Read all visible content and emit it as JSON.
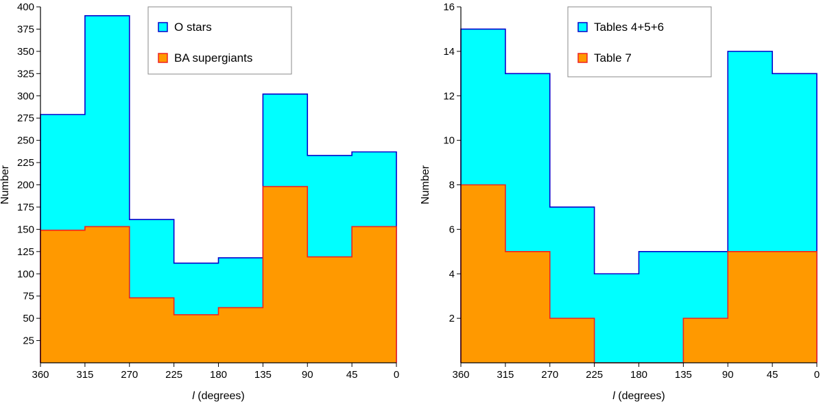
{
  "chart_data": [
    {
      "type": "histogram",
      "xlabel_var": "l",
      "xlabel_rest": " (degrees)",
      "ylabel": "Number",
      "xlim": [
        360,
        0
      ],
      "ylim": [
        0,
        400
      ],
      "x_ticks": [
        360,
        315,
        270,
        225,
        180,
        135,
        90,
        45,
        0
      ],
      "y_ticks": [
        25,
        50,
        75,
        100,
        125,
        150,
        175,
        200,
        225,
        250,
        275,
        300,
        325,
        350,
        375,
        400
      ],
      "legend_position": "top-center",
      "series": [
        {
          "name": "O stars",
          "fill": "#00ffff",
          "stroke": "#0000cc",
          "points": [
            [
              360,
              279
            ],
            [
              315,
              279
            ],
            [
              315,
              390
            ],
            [
              270,
              390
            ],
            [
              270,
              161
            ],
            [
              225,
              161
            ],
            [
              225,
              112
            ],
            [
              180,
              112
            ],
            [
              180,
              118
            ],
            [
              135,
              118
            ],
            [
              135,
              302
            ],
            [
              90,
              302
            ],
            [
              90,
              233
            ],
            [
              45,
              233
            ],
            [
              45,
              237
            ],
            [
              0,
              237
            ]
          ]
        },
        {
          "name": "BA supergiants",
          "fill": "#ff9900",
          "stroke": "#ee2222",
          "points": [
            [
              360,
              149
            ],
            [
              315,
              149
            ],
            [
              315,
              153
            ],
            [
              270,
              153
            ],
            [
              270,
              73
            ],
            [
              225,
              73
            ],
            [
              225,
              54
            ],
            [
              180,
              54
            ],
            [
              180,
              62
            ],
            [
              135,
              62
            ],
            [
              135,
              198
            ],
            [
              90,
              198
            ],
            [
              90,
              119
            ],
            [
              45,
              119
            ],
            [
              45,
              153
            ],
            [
              0,
              153
            ]
          ]
        }
      ]
    },
    {
      "type": "histogram",
      "xlabel_var": "l",
      "xlabel_rest": " (degrees)",
      "ylabel": "Number",
      "xlim": [
        360,
        0
      ],
      "ylim": [
        0,
        16
      ],
      "x_ticks": [
        360,
        315,
        270,
        225,
        180,
        135,
        90,
        45,
        0
      ],
      "y_ticks": [
        2,
        4,
        6,
        8,
        10,
        12,
        14,
        16
      ],
      "legend_position": "top-right",
      "series": [
        {
          "name": "Tables 4+5+6",
          "fill": "#00ffff",
          "stroke": "#0000cc",
          "points": [
            [
              360,
              15
            ],
            [
              315,
              15
            ],
            [
              315,
              13
            ],
            [
              270,
              13
            ],
            [
              270,
              7
            ],
            [
              225,
              7
            ],
            [
              225,
              4
            ],
            [
              180,
              4
            ],
            [
              180,
              5
            ],
            [
              135,
              5
            ],
            [
              135,
              5
            ],
            [
              90,
              5
            ],
            [
              90,
              14
            ],
            [
              45,
              14
            ],
            [
              45,
              13
            ],
            [
              0,
              13
            ]
          ]
        },
        {
          "name": "Table 7",
          "fill": "#ff9900",
          "stroke": "#ee2222",
          "points": [
            [
              360,
              8
            ],
            [
              315,
              8
            ],
            [
              315,
              5
            ],
            [
              270,
              5
            ],
            [
              270,
              2
            ],
            [
              225,
              2
            ],
            [
              225,
              0
            ],
            [
              180,
              0
            ],
            [
              180,
              0
            ],
            [
              135,
              0
            ],
            [
              135,
              2
            ],
            [
              90,
              2
            ],
            [
              90,
              5
            ],
            [
              45,
              5
            ],
            [
              45,
              5
            ],
            [
              0,
              5
            ]
          ]
        }
      ]
    }
  ]
}
